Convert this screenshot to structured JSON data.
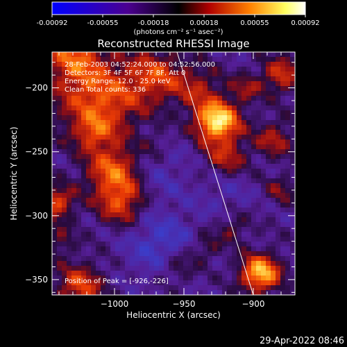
{
  "chart_data": {
    "type": "heatmap",
    "title": "Reconstructed RHESSI Image",
    "xlabel": "Heliocentric X (arcsec)",
    "ylabel": "Heliocentric Y (arcsec)",
    "xlim": [
      -1045,
      -870
    ],
    "ylim": [
      -362,
      -172
    ],
    "x_ticks": [
      -1000,
      -950,
      -900
    ],
    "y_ticks": [
      -200,
      -250,
      -300,
      -350
    ],
    "x_tick_labels": [
      "−1000",
      "−950",
      "−900"
    ],
    "y_tick_labels": [
      "−200",
      "−250",
      "−300",
      "−350"
    ],
    "colorbar": {
      "range": [
        -0.00092,
        0.00092
      ],
      "ticks": [
        "-0.00092",
        "-0.00055",
        "-0.00018",
        "0.00018",
        "0.00055",
        "0.00092"
      ],
      "unit_label": "(photons cm⁻² s⁻¹ asec⁻²)",
      "colors": [
        "#0000ff",
        "#4b0090",
        "#000000",
        "#b00000",
        "#ff8000",
        "#ffff60",
        "#ffffff"
      ]
    },
    "info": [
      "28-Feb-2003 04:52:24.000 to 04:52:56.000",
      "Detectors: 3F 4F 5F 6F 7F 8F, Att 0",
      "Energy Range: 12.0 - 25.0 keV",
      "Clean     Total counts: 336"
    ],
    "peak_label": "Position of Peak = [-926,-226]",
    "peak": [
      -926,
      -226
    ],
    "limb_line": [
      [
        -955,
        -172
      ],
      [
        -900,
        -362
      ]
    ],
    "grid": false,
    "legend": "none"
  },
  "timestamp": "29-Apr-2022 08:46"
}
